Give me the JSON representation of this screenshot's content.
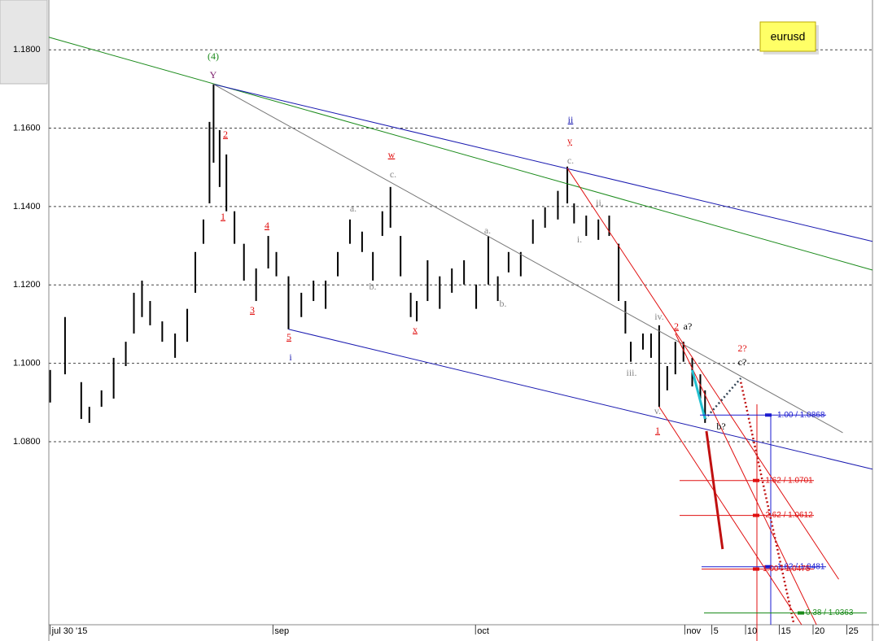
{
  "chart_data": {
    "type": "hilo",
    "title": "eurusd",
    "color": "#000000",
    "x": [
      0,
      2.2,
      4.6,
      5.8,
      7.6,
      9.4,
      11.2,
      12.4,
      13.6,
      14.8,
      16.6,
      18.5,
      20.3,
      21.5,
      22.7,
      23.6,
      24.2,
      25.1,
      26.1,
      27.3,
      28.7,
      30.5,
      32.3,
      33.5,
      35.3,
      37.2,
      39.0,
      40.8,
      42.6,
      44.4,
      46.2,
      47.8,
      49.2,
      50.4,
      51.9,
      53.4,
      54.3,
      55.9,
      57.7,
      59.5,
      61.3,
      63.1,
      64.9,
      66.3,
      67.9,
      69.7,
      71.5,
      73.3,
      75.2,
      76.6,
      77.6,
      79.4,
      81.2,
      82.8,
      84.2,
      85.2,
      86.0,
      87.8,
      89.0,
      90.2,
      91.4,
      92.6,
      93.8,
      95.1,
      96.3,
      97.0
    ],
    "high": [
      1.0983,
      1.1118,
      1.0952,
      1.0889,
      1.0931,
      1.1014,
      1.1055,
      1.118,
      1.1211,
      1.1159,
      1.1107,
      1.1076,
      1.1139,
      1.1284,
      1.1367,
      1.1616,
      1.1712,
      1.1595,
      1.1533,
      1.1388,
      1.1305,
      1.1242,
      1.1325,
      1.1284,
      1.1222,
      1.118,
      1.1211,
      1.1211,
      1.1284,
      1.1367,
      1.1336,
      1.1284,
      1.1388,
      1.145,
      1.1325,
      1.118,
      1.1159,
      1.1263,
      1.1222,
      1.1242,
      1.1263,
      1.1201,
      1.1325,
      1.1222,
      1.1284,
      1.1284,
      1.1367,
      1.1398,
      1.144,
      1.1502,
      1.1408,
      1.1377,
      1.1367,
      1.1377,
      1.1305,
      1.1159,
      1.1055,
      1.1076,
      1.1076,
      1.1097,
      1.0993,
      1.1055,
      1.1055,
      1.1014,
      1.0972,
      1.0931
    ],
    "low": [
      1.09,
      1.0972,
      1.0858,
      1.0848,
      1.0889,
      1.091,
      1.0993,
      1.1076,
      1.1118,
      1.1097,
      1.1055,
      1.1014,
      1.1055,
      1.118,
      1.1305,
      1.1408,
      1.1512,
      1.145,
      1.1388,
      1.1305,
      1.1211,
      1.1159,
      1.1242,
      1.1222,
      1.1087,
      1.1118,
      1.1159,
      1.1139,
      1.1222,
      1.1305,
      1.1284,
      1.1211,
      1.1325,
      1.1346,
      1.1222,
      1.1118,
      1.1107,
      1.1159,
      1.1139,
      1.118,
      1.1201,
      1.1139,
      1.1201,
      1.1159,
      1.1232,
      1.1222,
      1.1305,
      1.1346,
      1.1367,
      1.1408,
      1.1357,
      1.1325,
      1.1315,
      1.1325,
      1.1159,
      1.1076,
      1.1004,
      1.1035,
      1.1014,
      1.0889,
      1.0931,
      1.0972,
      1.1004,
      1.0941,
      1.091,
      1.0848
    ],
    "xlim": [
      -0.2,
      121.8
    ],
    "ylim": [
      1.0333,
      1.1927
    ],
    "xticks": [
      {
        "value": 0,
        "label": "jul 30 '15"
      },
      {
        "value": 33,
        "label": "sep"
      },
      {
        "value": 63,
        "label": "oct"
      },
      {
        "value": 94,
        "label": "nov"
      },
      {
        "value": 98,
        "label": "5"
      },
      {
        "value": 103,
        "label": "10"
      },
      {
        "value": 108,
        "label": "15"
      },
      {
        "value": 113,
        "label": "20"
      },
      {
        "value": 118,
        "label": "25"
      }
    ],
    "yticks": [
      {
        "value": 1.18,
        "label": "1.1800"
      },
      {
        "value": 1.16,
        "label": "1.1600"
      },
      {
        "value": 1.14,
        "label": "1.1400"
      },
      {
        "value": 1.12,
        "label": "1.1200"
      },
      {
        "value": 1.1,
        "label": "1.1000"
      },
      {
        "value": 1.08,
        "label": "1.0800"
      }
    ],
    "grid": true,
    "trendlines": [
      {
        "color": "#1a8a1a",
        "style": "solid",
        "x": [
          -0.2,
          121.8
        ],
        "y": [
          1.1832,
          1.1238
        ]
      },
      {
        "color": "#1a1ab0",
        "style": "solid",
        "x": [
          24.2,
          121.8
        ],
        "y": [
          1.1712,
          1.1311
        ]
      },
      {
        "color": "#1a1ab0",
        "style": "solid",
        "x": [
          35.3,
          121.8
        ],
        "y": [
          1.1087,
          1.073
        ]
      },
      {
        "color": "#777777",
        "style": "solid",
        "x": [
          24.2,
          117.4
        ],
        "y": [
          1.1712,
          1.0823
        ]
      },
      {
        "color": "#e01010",
        "style": "solid",
        "x": [
          76.6,
          116.8
        ],
        "y": [
          1.1498,
          1.0449
        ]
      },
      {
        "color": "#e01010",
        "style": "solid",
        "x": [
          90.2,
          111.3
        ],
        "y": [
          1.0889,
          1.0333
        ]
      },
      {
        "color": "#e01010",
        "style": "solid",
        "x": [
          92.6,
          113.5
        ],
        "y": [
          1.1076,
          1.0333
        ]
      },
      {
        "color": "#c01010",
        "style": "thick",
        "x": [
          97.2,
          99.6
        ],
        "y": [
          1.0827,
          1.0526
        ]
      },
      {
        "color": "#c01010",
        "style": "dotted",
        "x": [
          102.3,
          110.1
        ],
        "y": [
          1.0952,
          1.0339
        ]
      },
      {
        "color": "#334455",
        "style": "dotted",
        "x": [
          97.0,
          102.3
        ],
        "y": [
          1.0858,
          1.0962
        ]
      },
      {
        "color": "#22c0d0",
        "style": "thick",
        "x": [
          95.1,
          97.0
        ],
        "y": [
          1.0983,
          1.0858
        ]
      }
    ],
    "levels": [
      {
        "value": 1.0868,
        "label": "1.00 / 1.0868",
        "color": "#1a1ad0"
      },
      {
        "value": 1.0701,
        "label": "-1.62 / 1.0701",
        "color": "#e01010"
      },
      {
        "value": 1.0612,
        "label": "-2.62 / 1.0612",
        "color": "#e01010"
      },
      {
        "value": 1.0481,
        "label": "1.62 / 1.0481",
        "color": "#1a1ad0"
      },
      {
        "value": 1.0475,
        "label": "1.00 / 1.0475",
        "color": "#e01010"
      },
      {
        "value": 1.0363,
        "label": "0.38 / 1.0363",
        "color": "#1a8a1a"
      }
    ],
    "wave_labels": [
      {
        "text": "(4)",
        "color": "#1a8a1a"
      },
      {
        "text": "Y",
        "color": "#7a1a6a"
      },
      {
        "text": "2",
        "color": "#e01010"
      },
      {
        "text": "1",
        "color": "#e01010"
      },
      {
        "text": "4",
        "color": "#e01010"
      },
      {
        "text": "3",
        "color": "#e01010"
      },
      {
        "text": "5",
        "color": "#e01010"
      },
      {
        "text": "i",
        "color": "#1a1ab0"
      },
      {
        "text": "w",
        "color": "#e01010"
      },
      {
        "text": "c.",
        "color": "#888888"
      },
      {
        "text": "a.",
        "color": "#888888"
      },
      {
        "text": "b.",
        "color": "#888888"
      },
      {
        "text": "x",
        "color": "#e01010"
      },
      {
        "text": "a.",
        "color": "#888888"
      },
      {
        "text": "b.",
        "color": "#888888"
      },
      {
        "text": "ii",
        "color": "#1a1ab0"
      },
      {
        "text": "y",
        "color": "#e01010"
      },
      {
        "text": "c.",
        "color": "#888888"
      },
      {
        "text": "ii.",
        "color": "#888888"
      },
      {
        "text": "i.",
        "color": "#888888"
      },
      {
        "text": "iv.",
        "color": "#888888"
      },
      {
        "text": "iii.",
        "color": "#888888"
      },
      {
        "text": "v.",
        "color": "#888888"
      },
      {
        "text": "1",
        "color": "#e01010"
      },
      {
        "text": "2",
        "color": "#e01010"
      },
      {
        "text": "a?",
        "color": "#000000"
      },
      {
        "text": "b?",
        "color": "#000000"
      },
      {
        "text": "2?",
        "color": "#e01010"
      },
      {
        "text": "c?",
        "color": "#000000"
      }
    ]
  }
}
